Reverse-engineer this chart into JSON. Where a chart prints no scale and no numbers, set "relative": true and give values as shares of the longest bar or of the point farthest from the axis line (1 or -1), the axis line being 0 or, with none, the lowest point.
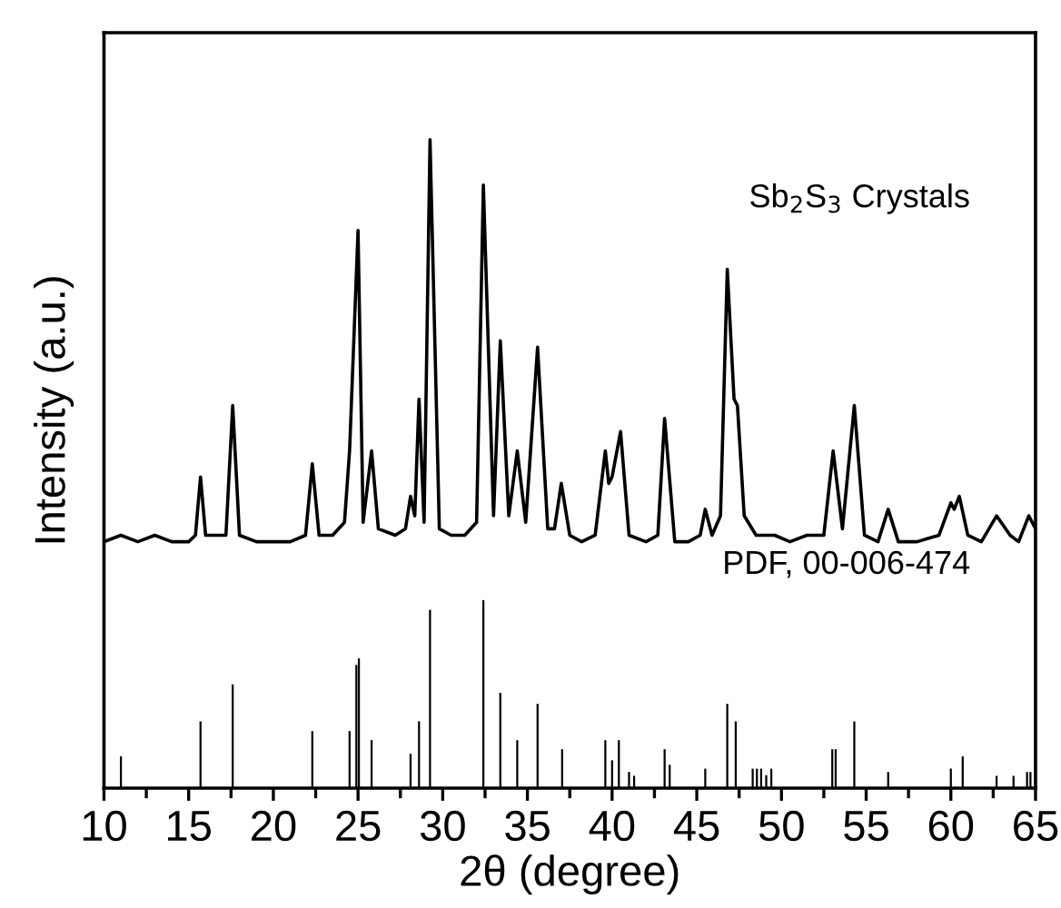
{
  "chart_data": {
    "type": "line",
    "relative": true,
    "xlabel": "2θ (degree)",
    "ylabel": "Intensity (a.u.)",
    "xlim": [
      10,
      65
    ],
    "xticks": [
      10,
      15,
      20,
      25,
      30,
      35,
      40,
      45,
      50,
      55,
      60,
      65
    ],
    "tick_labels": "x",
    "grid": false,
    "annotations": [
      "Sb$_{2}$S$_{3}$ Crystals",
      "PDF, 00-006-474"
    ],
    "series": [
      {
        "color": "#000000",
        "x": [
          10,
          11,
          12,
          13,
          14,
          15,
          15.4,
          15.7,
          16.0,
          17.2,
          17.6,
          18.0,
          19,
          20,
          21,
          21.9,
          22.3,
          22.7,
          23.5,
          24.2,
          24.5,
          25.0,
          25.3,
          25.8,
          26.2,
          27.2,
          27.8,
          28.1,
          28.35,
          28.6,
          28.9,
          29.25,
          29.8,
          30.5,
          31.3,
          32.0,
          32.4,
          33.0,
          33.4,
          33.9,
          34.4,
          34.9,
          35.6,
          36.2,
          36.6,
          37.0,
          37.5,
          38.2,
          39.0,
          39.6,
          39.8,
          40.0,
          40.5,
          41.0,
          42.0,
          42.7,
          43.1,
          43.7,
          44.5,
          45.2,
          45.5,
          45.9,
          46.4,
          46.8,
          47.2,
          47.4,
          47.8,
          48.5,
          49.6,
          50.5,
          51.5,
          52.5,
          53.05,
          53.6,
          54.3,
          54.9,
          55.7,
          56.3,
          56.9,
          58.0,
          59.3,
          60.0,
          60.2,
          60.5,
          61.0,
          61.8,
          62.7,
          63.5,
          64.0,
          64.6,
          65
        ],
        "values": [
          0.38,
          0.39,
          0.38,
          0.39,
          0.38,
          0.38,
          0.39,
          0.48,
          0.39,
          0.39,
          0.59,
          0.39,
          0.38,
          0.38,
          0.38,
          0.39,
          0.5,
          0.39,
          0.39,
          0.41,
          0.52,
          0.86,
          0.41,
          0.52,
          0.4,
          0.39,
          0.4,
          0.45,
          0.42,
          0.6,
          0.41,
          1.0,
          0.4,
          0.39,
          0.39,
          0.41,
          0.93,
          0.42,
          0.69,
          0.42,
          0.52,
          0.41,
          0.68,
          0.4,
          0.4,
          0.47,
          0.39,
          0.38,
          0.39,
          0.52,
          0.47,
          0.48,
          0.55,
          0.39,
          0.38,
          0.39,
          0.57,
          0.38,
          0.38,
          0.39,
          0.43,
          0.39,
          0.42,
          0.8,
          0.6,
          0.59,
          0.42,
          0.39,
          0.39,
          0.38,
          0.39,
          0.39,
          0.52,
          0.4,
          0.59,
          0.39,
          0.38,
          0.43,
          0.38,
          0.38,
          0.39,
          0.44,
          0.43,
          0.45,
          0.39,
          0.38,
          0.42,
          0.39,
          0.38,
          0.42,
          0.4
        ]
      },
      {
        "type": "bar",
        "color": "#000000",
        "x": [
          11.0,
          15.7,
          17.6,
          22.3,
          24.5,
          24.9,
          25.05,
          25.8,
          28.1,
          28.6,
          29.25,
          32.4,
          33.4,
          34.4,
          35.6,
          37.05,
          39.6,
          40.0,
          40.4,
          41.0,
          41.3,
          43.1,
          43.4,
          45.5,
          46.8,
          47.3,
          48.3,
          48.55,
          48.8,
          49.1,
          49.4,
          53.0,
          53.2,
          54.3,
          56.3,
          60.0,
          60.7,
          62.7,
          63.7,
          64.5,
          64.7
        ],
        "values": [
          0.049,
          0.103,
          0.16,
          0.088,
          0.088,
          0.19,
          0.2,
          0.074,
          0.053,
          0.103,
          0.275,
          0.29,
          0.147,
          0.074,
          0.13,
          0.06,
          0.074,
          0.043,
          0.074,
          0.025,
          0.019,
          0.06,
          0.036,
          0.03,
          0.13,
          0.103,
          0.03,
          0.03,
          0.03,
          0.02,
          0.03,
          0.06,
          0.06,
          0.103,
          0.025,
          0.03,
          0.049,
          0.019,
          0.019,
          0.025,
          0.025
        ]
      }
    ]
  }
}
